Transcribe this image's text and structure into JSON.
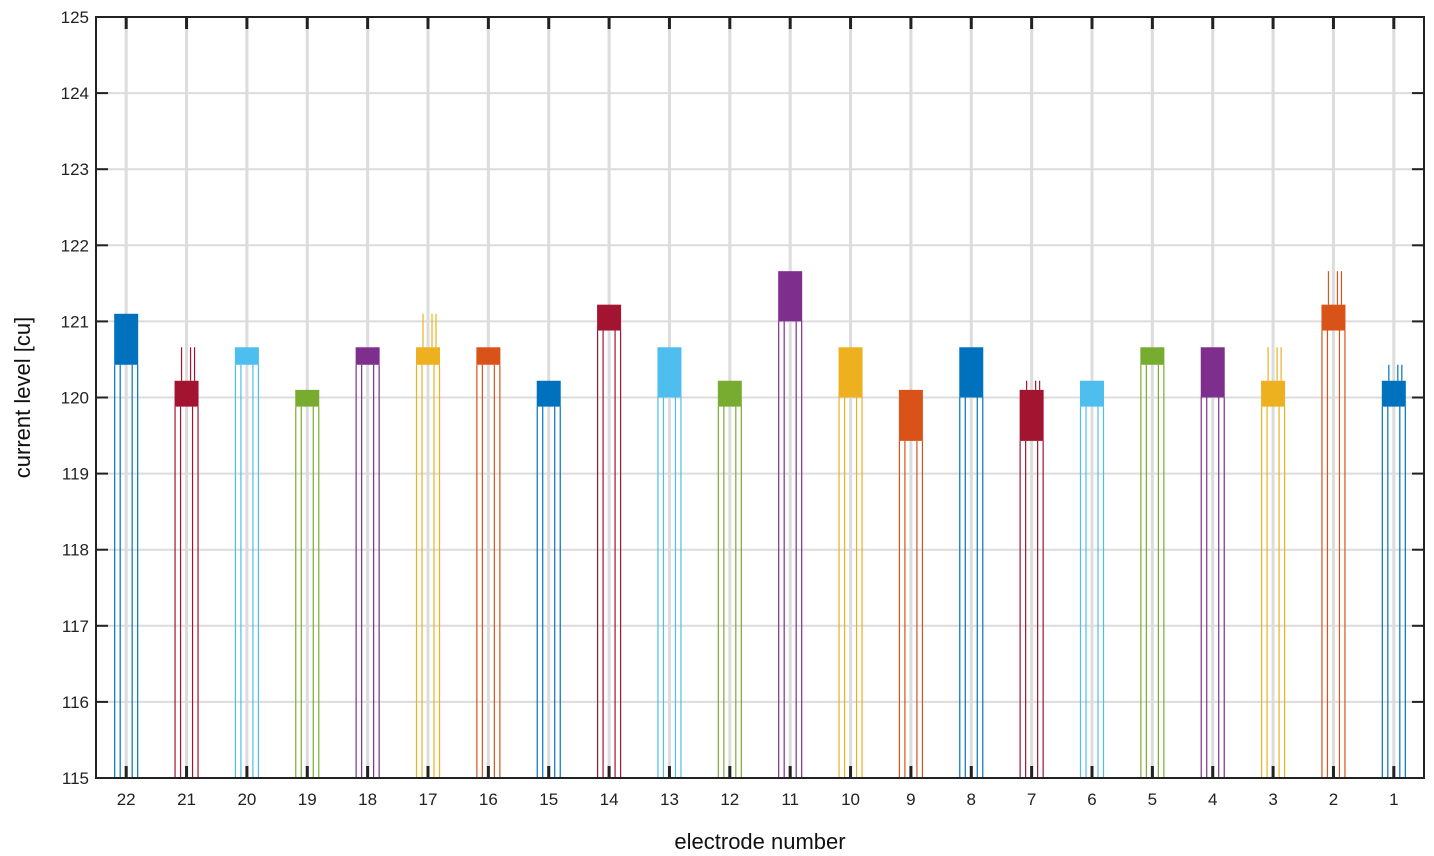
{
  "chart_data": {
    "type": "bar",
    "xlabel": "electrode number",
    "ylabel": "current level [cu]",
    "ylim": [
      115,
      125
    ],
    "yticks": [
      115,
      116,
      117,
      118,
      119,
      120,
      121,
      122,
      123,
      124,
      125
    ],
    "grid": true,
    "categories": [
      "22",
      "21",
      "20",
      "19",
      "18",
      "17",
      "16",
      "15",
      "14",
      "13",
      "12",
      "11",
      "10",
      "9",
      "8",
      "7",
      "6",
      "5",
      "4",
      "3",
      "2",
      "1"
    ],
    "series": [
      {
        "values": [
          {
            "low": 120.43,
            "high": 121.1,
            "spike_max": 121.1
          },
          {
            "low": 119.88,
            "high": 120.22,
            "spike_max": 120.66
          },
          {
            "low": 120.43,
            "high": 120.66,
            "spike_max": 120.66
          },
          {
            "low": 119.88,
            "high": 120.1,
            "spike_max": 120.1
          },
          {
            "low": 120.43,
            "high": 120.66,
            "spike_max": 120.66
          },
          {
            "low": 120.43,
            "high": 120.66,
            "spike_max": 121.1
          },
          {
            "low": 120.43,
            "high": 120.66,
            "spike_max": 120.66
          },
          {
            "low": 119.88,
            "high": 120.22,
            "spike_max": 120.22
          },
          {
            "low": 120.88,
            "high": 121.22,
            "spike_max": 121.22
          },
          {
            "low": 120.0,
            "high": 120.66,
            "spike_max": 120.66
          },
          {
            "low": 119.88,
            "high": 120.22,
            "spike_max": 120.22
          },
          {
            "low": 121.0,
            "high": 121.66,
            "spike_max": 121.66
          },
          {
            "low": 120.0,
            "high": 120.66,
            "spike_max": 120.66
          },
          {
            "low": 119.43,
            "high": 120.1,
            "spike_max": 120.1
          },
          {
            "low": 120.0,
            "high": 120.66,
            "spike_max": 120.66
          },
          {
            "low": 119.43,
            "high": 120.1,
            "spike_max": 120.22
          },
          {
            "low": 119.88,
            "high": 120.22,
            "spike_max": 120.22
          },
          {
            "low": 120.43,
            "high": 120.66,
            "spike_max": 120.66
          },
          {
            "low": 120.0,
            "high": 120.66,
            "spike_max": 120.66
          },
          {
            "low": 119.88,
            "high": 120.22,
            "spike_max": 120.66
          },
          {
            "low": 120.88,
            "high": 121.22,
            "spike_max": 121.66
          },
          {
            "low": 119.88,
            "high": 120.22,
            "spike_max": 120.43
          }
        ]
      }
    ],
    "colors": [
      "#0072BD",
      "#A2142F",
      "#4DBEEE",
      "#77AC30",
      "#7E2F8E",
      "#EDB120",
      "#D95319"
    ]
  }
}
